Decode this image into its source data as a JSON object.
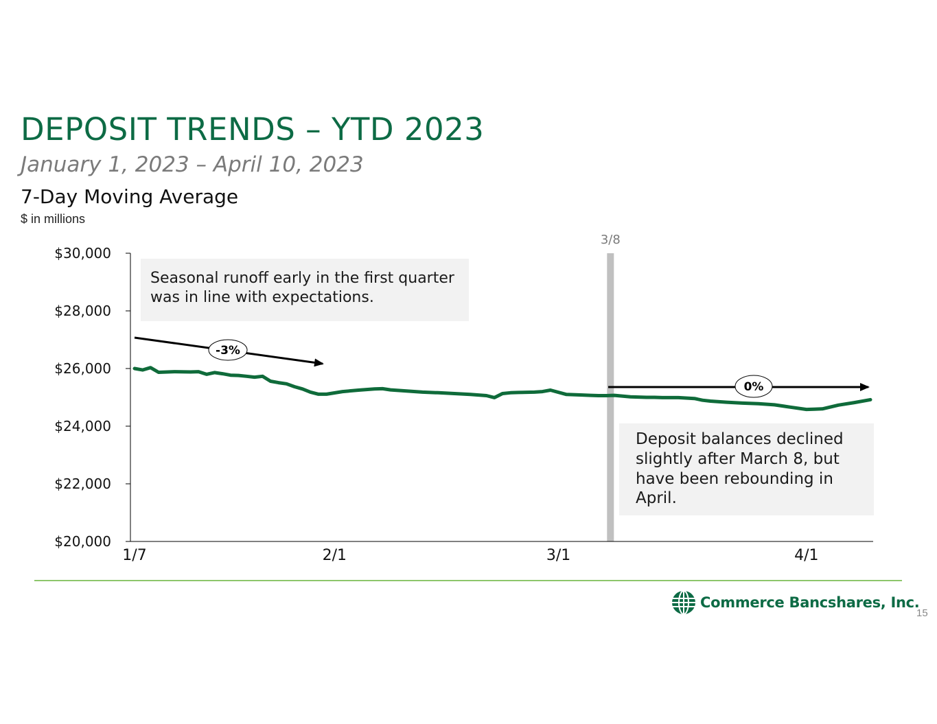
{
  "title": "DEPOSIT TRENDS – YTD 2023",
  "subtitle": "January 1, 2023 – April 10, 2023",
  "chart_title": "7-Day Moving Average",
  "unit": "$ in millions",
  "colors": {
    "brand_green": "#0d6b45",
    "line": "#0f6b3a",
    "rule": "#8dc66b",
    "marker": "#c0c0c0"
  },
  "chart_data": {
    "type": "line",
    "title": "7-Day Moving Average",
    "xlabel": "",
    "ylabel": "$ in millions",
    "ylim": [
      20000,
      30000
    ],
    "yticks": [
      20000,
      22000,
      24000,
      26000,
      28000,
      30000
    ],
    "ytick_labels": [
      "$20,000",
      "$22,000",
      "$24,000",
      "$26,000",
      "$28,000",
      "$30,000"
    ],
    "xlim_days": [
      0,
      92
    ],
    "xticks": [
      {
        "day": 0,
        "label": "1/7"
      },
      {
        "day": 25,
        "label": "2/1"
      },
      {
        "day": 53,
        "label": "3/1"
      },
      {
        "day": 84,
        "label": "4/1"
      }
    ],
    "series": [
      {
        "name": "7-Day Moving Average",
        "x": [
          0,
          1,
          2,
          3,
          5,
          7,
          8,
          9,
          10,
          11,
          12,
          13,
          14,
          15,
          16,
          17,
          18,
          19,
          20,
          21,
          22,
          23,
          24,
          26,
          28,
          30,
          31,
          32,
          34,
          36,
          38,
          40,
          42,
          44,
          45,
          46,
          47,
          48,
          50,
          51,
          52,
          54,
          56,
          57,
          58,
          59,
          60,
          62,
          64,
          65,
          66,
          68,
          70,
          71,
          72,
          74,
          76,
          78,
          80,
          82,
          84,
          85,
          86,
          88,
          90,
          92
        ],
        "values": [
          26000,
          25950,
          26030,
          25870,
          25890,
          25880,
          25890,
          25800,
          25860,
          25820,
          25770,
          25760,
          25730,
          25700,
          25730,
          25560,
          25510,
          25470,
          25370,
          25290,
          25180,
          25110,
          25110,
          25200,
          25250,
          25290,
          25300,
          25260,
          25220,
          25180,
          25160,
          25130,
          25100,
          25060,
          24990,
          25130,
          25160,
          25170,
          25180,
          25200,
          25250,
          25100,
          25080,
          25070,
          25060,
          25060,
          25070,
          25020,
          25000,
          25000,
          24990,
          24990,
          24960,
          24900,
          24870,
          24830,
          24800,
          24780,
          24740,
          24660,
          24580,
          24590,
          24600,
          24730,
          24820,
          24920
        ]
      }
    ],
    "marker": {
      "day": 59.5,
      "label": "3/8"
    },
    "annotations": [
      {
        "text": "Seasonal runoff early in the first quarter was in line with expectations."
      },
      {
        "text": "Deposit balances declined slightly after March 8, but have been rebounding in April."
      }
    ],
    "trend_labels": [
      "-3%",
      "0%"
    ]
  },
  "logo": {
    "text": "Commerce Bancshares, Inc."
  },
  "page_number": "15"
}
